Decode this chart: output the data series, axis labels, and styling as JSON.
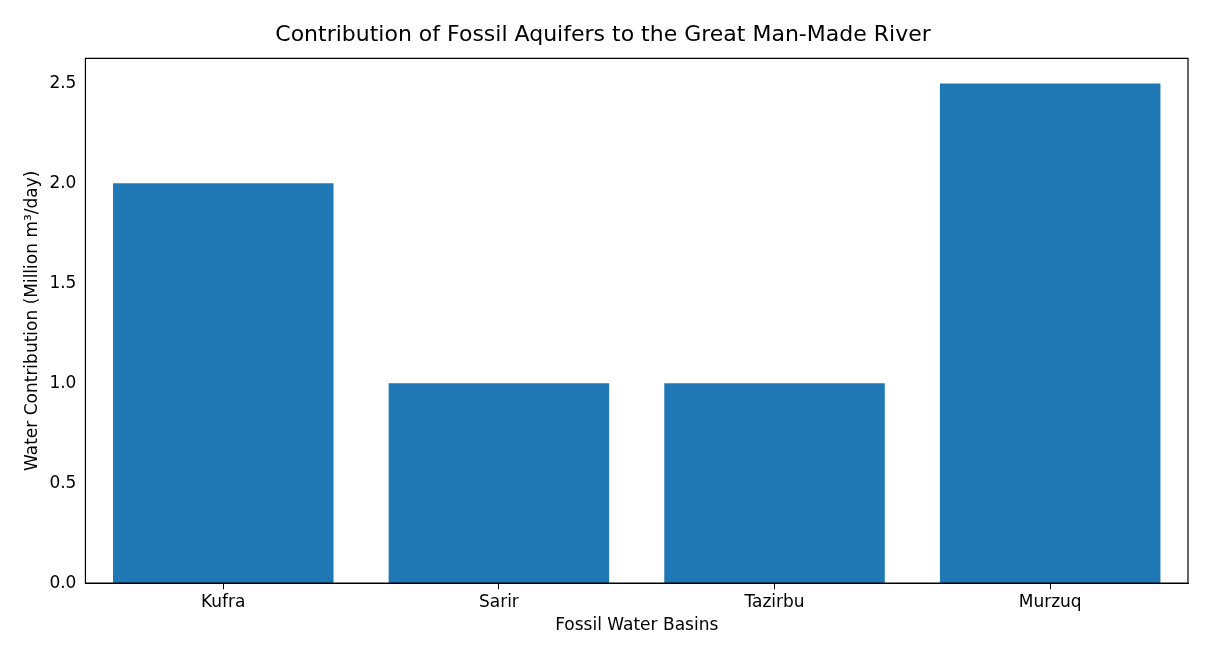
{
  "chart_data": {
    "type": "bar",
    "title": "Contribution of Fossil Aquifers to the Great Man-Made River",
    "xlabel": "Fossil Water Basins",
    "ylabel": "Water Contribution (Million m³/day)",
    "categories": [
      "Kufra",
      "Sarir",
      "Tazirbu",
      "Murzuq"
    ],
    "values": [
      2.0,
      1.0,
      1.0,
      2.5
    ],
    "color": "#1f77b4",
    "ylim": [
      0,
      2.625
    ],
    "yticks": [
      {
        "value": 0,
        "label": "0.0"
      },
      {
        "value": 0.5,
        "label": "0.5"
      },
      {
        "value": 1,
        "label": "1.0"
      },
      {
        "value": 1.5,
        "label": "1.5"
      },
      {
        "value": 2,
        "label": "2.0"
      },
      {
        "value": 2.5,
        "label": "2.5"
      }
    ],
    "grid": false,
    "legend": false
  }
}
